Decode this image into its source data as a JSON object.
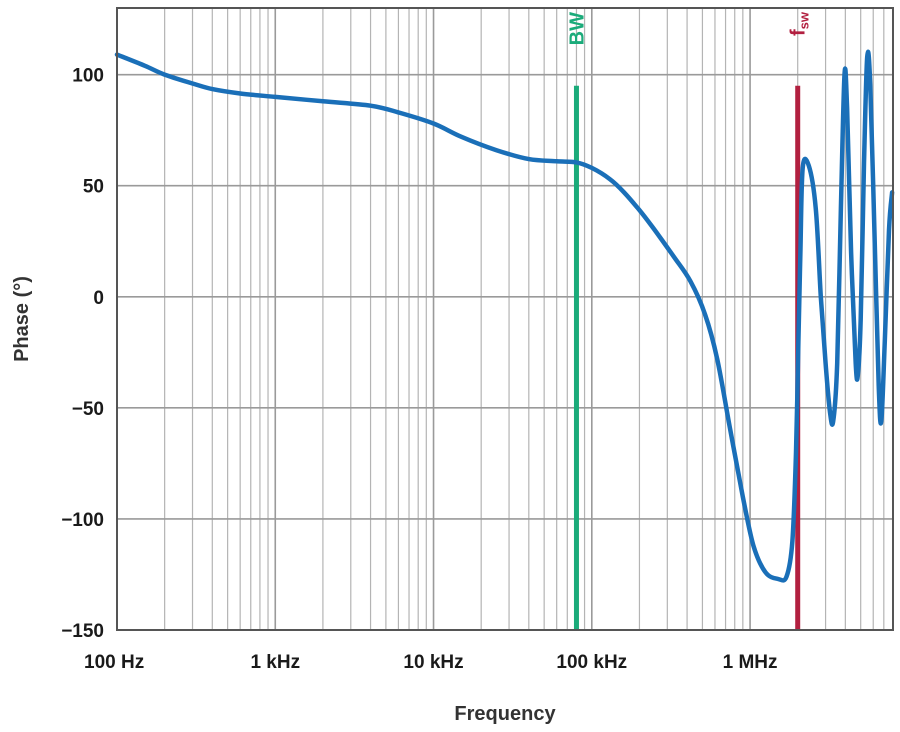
{
  "chart_data": {
    "type": "line",
    "title": "",
    "xlabel": "Frequency",
    "ylabel": "Phase (°)",
    "x_scale": "log",
    "xlim": [
      100,
      8000000
    ],
    "ylim": [
      -150,
      130
    ],
    "grid": true,
    "x_ticks": [
      {
        "value": 100,
        "label": "100 Hz"
      },
      {
        "value": 1000,
        "label": "1 kHz"
      },
      {
        "value": 10000,
        "label": "10 kHz"
      },
      {
        "value": 100000,
        "label": "100 kHz"
      },
      {
        "value": 1000000,
        "label": "1 MHz"
      }
    ],
    "y_ticks": [
      {
        "value": 100,
        "label": "100"
      },
      {
        "value": 50,
        "label": "50"
      },
      {
        "value": 0,
        "label": "0"
      },
      {
        "value": -50,
        "label": "−50"
      },
      {
        "value": -100,
        "label": "−100"
      },
      {
        "value": -150,
        "label": "−150"
      }
    ],
    "markers": [
      {
        "id": "bw",
        "label": "BW",
        "x": 80000,
        "y_top": 95,
        "color": "#1bab7a"
      },
      {
        "id": "fsw",
        "label": "f",
        "subscript": "sw",
        "x": 2000000,
        "y_top": 95,
        "color": "#b22040"
      }
    ],
    "series": [
      {
        "color": "#1a6fb8",
        "points": [
          [
            100,
            109
          ],
          [
            150,
            104
          ],
          [
            200,
            100
          ],
          [
            300,
            96
          ],
          [
            400,
            93.5
          ],
          [
            600,
            91.5
          ],
          [
            1000,
            90
          ],
          [
            2000,
            88
          ],
          [
            4000,
            86
          ],
          [
            6000,
            83
          ],
          [
            10000,
            78
          ],
          [
            15000,
            72
          ],
          [
            25000,
            66
          ],
          [
            40000,
            62
          ],
          [
            60000,
            61
          ],
          [
            80000,
            60.5
          ],
          [
            100000,
            58
          ],
          [
            130000,
            53
          ],
          [
            160000,
            47
          ],
          [
            200000,
            39
          ],
          [
            250000,
            30
          ],
          [
            330000,
            18
          ],
          [
            420000,
            7
          ],
          [
            520000,
            -8
          ],
          [
            620000,
            -28
          ],
          [
            750000,
            -60
          ],
          [
            900000,
            -90
          ],
          [
            1050000,
            -112
          ],
          [
            1250000,
            -124
          ],
          [
            1500000,
            -127
          ],
          [
            1700000,
            -126
          ],
          [
            1850000,
            -110
          ],
          [
            1950000,
            -70
          ],
          [
            2020000,
            -20
          ],
          [
            2080000,
            20
          ],
          [
            2150000,
            58
          ],
          [
            2350000,
            59
          ],
          [
            2600000,
            40
          ],
          [
            2800000,
            0
          ],
          [
            3000000,
            -30
          ],
          [
            3200000,
            -52
          ],
          [
            3350000,
            -56
          ],
          [
            3550000,
            -30
          ],
          [
            3750000,
            40
          ],
          [
            3950000,
            100
          ],
          [
            4100000,
            85
          ],
          [
            4350000,
            20
          ],
          [
            4650000,
            -30
          ],
          [
            4800000,
            -35
          ],
          [
            5000000,
            -10
          ],
          [
            5250000,
            60
          ],
          [
            5500000,
            108
          ],
          [
            5750000,
            95
          ],
          [
            6100000,
            30
          ],
          [
            6500000,
            -40
          ],
          [
            6750000,
            -56
          ],
          [
            7100000,
            -20
          ],
          [
            7550000,
            30
          ],
          [
            7900000,
            47
          ]
        ]
      }
    ]
  }
}
